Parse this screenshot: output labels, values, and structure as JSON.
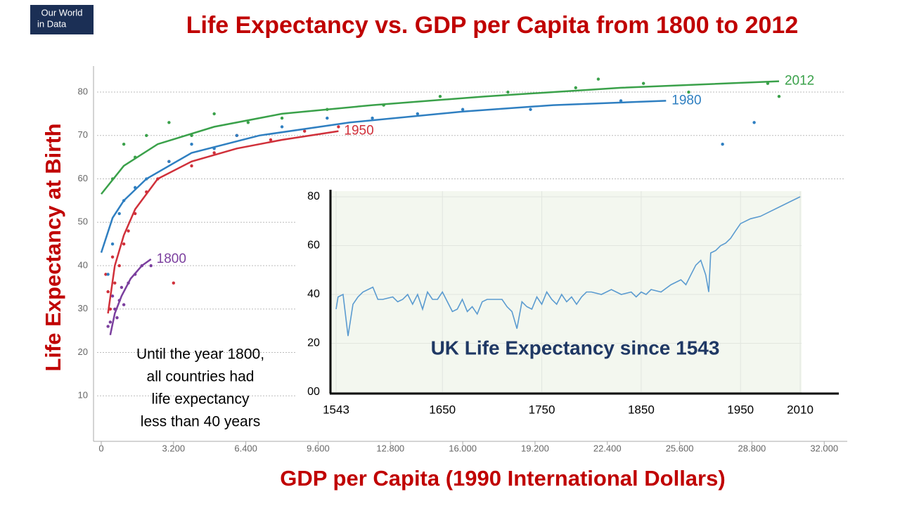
{
  "logo": [
    "Our World",
    "in Data"
  ],
  "chart_data": [
    {
      "type": "scatter",
      "title": "Life Expectancy vs. GDP per Capita from 1800 to 2012",
      "xlabel": "GDP per Capita (1990 International Dollars)",
      "ylabel": "Life Expectancy at Birth",
      "annotation": [
        "Until the year 1800,",
        "all countries had",
        "life expectancy",
        "less than 40 years"
      ],
      "xlim": [
        -342,
        33020
      ],
      "ylim": [
        0,
        86
      ],
      "xticks": [
        0,
        {
          "value": 3200,
          "label": "3.200"
        },
        {
          "value": 6400,
          "label": "6.400"
        },
        {
          "value": 9600,
          "label": "9.600"
        },
        {
          "value": 12800,
          "label": "12.800"
        },
        {
          "value": 16000,
          "label": "16.000"
        },
        {
          "value": 19200,
          "label": "19.200"
        },
        {
          "value": 22400,
          "label": "22.400"
        },
        {
          "value": 25600,
          "label": "25.600"
        },
        {
          "value": 28800,
          "label": "28.800"
        },
        {
          "value": 32000,
          "label": "32.000"
        }
      ],
      "yticks": [
        10,
        20,
        30,
        40,
        50,
        60,
        70,
        80
      ],
      "grid": true,
      "series": [
        {
          "name": "1950",
          "color": "#d0303a",
          "x": [
            200,
            300,
            400,
            500,
            600,
            800,
            1000,
            1200,
            1500,
            2000,
            2500,
            3000,
            4000,
            5000,
            6000,
            7500,
            9000,
            10500,
            3200
          ],
          "values": [
            38,
            34,
            30,
            42,
            36,
            40,
            45,
            48,
            52,
            57,
            60,
            64,
            63,
            66,
            70,
            69,
            71,
            72,
            36
          ],
          "trend": {
            "x": [
              300,
              600,
              1000,
              1500,
              2500,
              4000,
              6000,
              8000,
              10500
            ],
            "values": [
              29,
              40,
              47,
              53,
              60,
              64,
              67,
              69,
              71
            ]
          }
        },
        {
          "name": "1980",
          "color": "#2f7fc1",
          "x": [
            300,
            500,
            800,
            1000,
            1500,
            2000,
            3000,
            4000,
            5000,
            6000,
            8000,
            10000,
            12000,
            14000,
            16000,
            19000,
            23000,
            28900,
            27500
          ],
          "values": [
            38,
            45,
            52,
            55,
            58,
            60,
            64,
            68,
            67,
            70,
            72,
            74,
            74,
            75,
            76,
            76,
            78,
            73,
            68
          ],
          "trend": {
            "x": [
              0,
              500,
              1000,
              2000,
              4000,
              7000,
              11000,
              16000,
              20000,
              25000
            ],
            "values": [
              43,
              51,
              55,
              60,
              66,
              70,
              73,
              75.5,
              77,
              78
            ]
          }
        },
        {
          "name": "2012",
          "color": "#3aa14a",
          "x": [
            500,
            1000,
            1500,
            2000,
            3000,
            4000,
            5000,
            6500,
            8000,
            10000,
            12500,
            15000,
            18000,
            21000,
            22000,
            24000,
            26000,
            30000,
            29500
          ],
          "values": [
            60,
            68,
            65,
            70,
            73,
            70,
            75,
            73,
            74,
            76,
            77,
            79,
            80,
            81,
            83,
            82,
            80,
            79,
            82
          ],
          "trend": {
            "x": [
              0,
              1000,
              2500,
              5000,
              8000,
              12000,
              17000,
              23000,
              30000
            ],
            "values": [
              56.5,
              63,
              68,
              72,
              75,
              77,
              79,
              81,
              82.5
            ]
          }
        },
        {
          "name": "1800",
          "color": "#7b3f9e",
          "x": [
            300,
            400,
            500,
            600,
            700,
            800,
            900,
            1000,
            1200,
            1500,
            1800,
            2200
          ],
          "values": [
            26,
            27,
            33,
            30,
            28,
            32,
            35,
            31,
            36,
            38,
            40,
            40
          ],
          "trend": {
            "x": [
              400,
              600,
              900,
              1300,
              1800,
              2200
            ],
            "values": [
              24,
              29,
              33,
              37,
              40,
              41.5
            ]
          }
        }
      ]
    },
    {
      "type": "line",
      "title": "UK Life Expectancy since 1543",
      "xlim": [
        1543,
        2010
      ],
      "ylim": [
        0,
        80
      ],
      "xticks": [
        1543,
        1650,
        1750,
        1850,
        1950,
        2010
      ],
      "yticks": [
        {
          "value": 0,
          "label": "00"
        },
        20,
        40,
        60,
        80
      ],
      "color": "#5b9bd0",
      "x": [
        1543,
        1545,
        1550,
        1555,
        1560,
        1565,
        1570,
        1580,
        1585,
        1590,
        1600,
        1605,
        1610,
        1615,
        1620,
        1625,
        1630,
        1635,
        1640,
        1645,
        1650,
        1655,
        1660,
        1665,
        1670,
        1675,
        1680,
        1685,
        1690,
        1695,
        1700,
        1710,
        1715,
        1720,
        1725,
        1730,
        1735,
        1740,
        1745,
        1750,
        1755,
        1760,
        1765,
        1770,
        1775,
        1780,
        1785,
        1790,
        1795,
        1800,
        1810,
        1820,
        1830,
        1840,
        1845,
        1850,
        1855,
        1860,
        1870,
        1880,
        1890,
        1895,
        1900,
        1905,
        1910,
        1915,
        1918,
        1920,
        1925,
        1930,
        1935,
        1940,
        1945,
        1950,
        1960,
        1970,
        1980,
        1990,
        2000,
        2010
      ],
      "values": [
        34,
        39,
        40,
        23,
        36,
        39,
        41,
        43,
        38,
        38,
        39,
        37,
        38,
        40,
        36,
        40,
        34,
        41,
        38,
        38,
        41,
        37,
        33,
        34,
        38,
        33,
        35,
        32,
        37,
        38,
        38,
        38,
        35,
        33,
        26,
        37,
        35,
        34,
        39,
        36,
        41,
        38,
        36,
        40,
        37,
        39,
        36,
        39,
        41,
        41,
        40,
        42,
        40,
        41,
        39,
        41,
        40,
        42,
        41,
        44,
        46,
        44,
        48,
        52,
        54,
        48,
        41,
        57,
        58,
        60,
        61,
        63,
        66,
        69,
        71,
        72,
        74,
        76,
        78,
        80
      ]
    }
  ]
}
